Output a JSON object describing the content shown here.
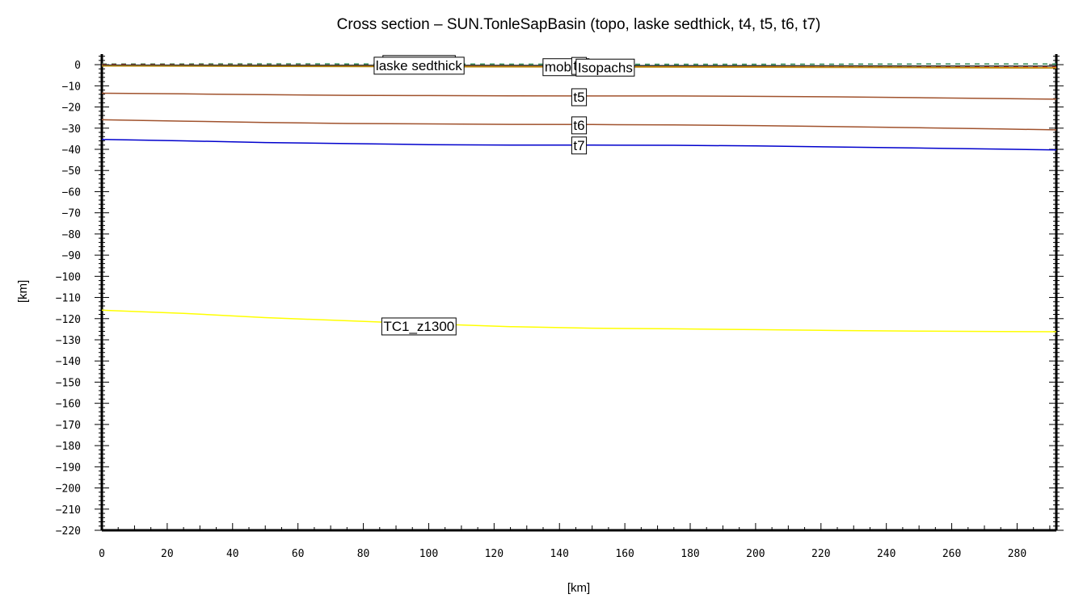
{
  "chart_data": {
    "type": "line",
    "title": "Cross section – SUN.TonleSapBasin (topo, laske sedthick, t4, t5, t6, t7)",
    "xlabel": "[km]",
    "ylabel": "[km]",
    "xlim": [
      0,
      292
    ],
    "ylim": [
      -220,
      5
    ],
    "xticks": [
      0,
      20,
      40,
      60,
      80,
      100,
      120,
      140,
      160,
      180,
      200,
      220,
      240,
      260,
      280
    ],
    "yticks": [
      0,
      -10,
      -20,
      -30,
      -40,
      -50,
      -60,
      -70,
      -80,
      -90,
      -100,
      -110,
      -120,
      -130,
      -140,
      -150,
      -160,
      -170,
      -180,
      -190,
      -200,
      -210,
      -220
    ],
    "grid": false,
    "series": [
      {
        "name": "topography",
        "color": "#2e8b57",
        "dashed": true,
        "label_at": 97,
        "label_y": 0.5,
        "x": [
          0,
          50,
          100,
          150,
          200,
          250,
          292
        ],
        "y": [
          0.3,
          0.4,
          0.3,
          0.2,
          0.2,
          0.3,
          0.3
        ]
      },
      {
        "name": "laske sedthick",
        "color": "#ff0000",
        "dashed": true,
        "label_at": 97,
        "label_y": -0.3,
        "x": [
          0,
          50,
          100,
          150,
          200,
          250,
          292
        ],
        "y": [
          0.0,
          -0.2,
          -0.3,
          -0.5,
          -0.6,
          -0.8,
          -0.9
        ]
      },
      {
        "name": "mobilis",
        "color": "#ff8c00",
        "dashed": false,
        "label_at": 142,
        "label_y": -1.0,
        "x": [
          0,
          50,
          100,
          150,
          200,
          250,
          292
        ],
        "y": [
          -0.3,
          -0.5,
          -0.6,
          -0.8,
          -1.0,
          -1.3,
          -1.5
        ]
      },
      {
        "name": "t4",
        "color": "#333333",
        "dashed": false,
        "label_at": 146,
        "label_y": -0.4,
        "x": [
          0,
          50,
          100,
          150,
          200,
          250,
          292
        ],
        "y": [
          -0.2,
          -0.3,
          -0.3,
          -0.4,
          -0.5,
          -0.6,
          -0.7
        ]
      },
      {
        "name": "Isopachs",
        "color": "#b8860b",
        "dashed": false,
        "label_at": 154,
        "label_y": -1.2,
        "x": [
          0,
          50,
          100,
          150,
          200,
          250,
          292
        ],
        "y": [
          -0.6,
          -0.8,
          -1.0,
          -1.1,
          -1.2,
          -1.4,
          -1.6
        ]
      },
      {
        "name": "t5",
        "color": "#a0522d",
        "dashed": false,
        "label_at": 146,
        "label_y": -15.2,
        "x": [
          0,
          25,
          50,
          75,
          100,
          125,
          150,
          175,
          200,
          225,
          250,
          275,
          292
        ],
        "y": [
          -13.5,
          -13.8,
          -14.2,
          -14.5,
          -14.6,
          -14.7,
          -14.8,
          -14.8,
          -15.0,
          -15.2,
          -15.6,
          -16.0,
          -16.3
        ]
      },
      {
        "name": "t6",
        "color": "#a0522d",
        "dashed": false,
        "label_at": 146,
        "label_y": -28.5,
        "x": [
          0,
          25,
          50,
          75,
          100,
          125,
          150,
          175,
          200,
          225,
          250,
          275,
          292
        ],
        "y": [
          -26.0,
          -26.7,
          -27.3,
          -27.8,
          -28.0,
          -28.2,
          -28.3,
          -28.5,
          -28.8,
          -29.3,
          -29.8,
          -30.4,
          -30.8
        ]
      },
      {
        "name": "t7",
        "color": "#0000cd",
        "dashed": false,
        "label_at": 146,
        "label_y": -38.0,
        "x": [
          0,
          25,
          50,
          75,
          100,
          125,
          150,
          175,
          200,
          225,
          250,
          275,
          292
        ],
        "y": [
          -35.3,
          -36.0,
          -36.8,
          -37.3,
          -37.8,
          -38.0,
          -38.0,
          -38.1,
          -38.4,
          -38.9,
          -39.4,
          -39.9,
          -40.3
        ]
      },
      {
        "name": "TC1_z1300",
        "color": "#ffff00",
        "dashed": false,
        "label_at": 97,
        "label_y": -123.5,
        "x": [
          0,
          25,
          50,
          75,
          100,
          125,
          150,
          175,
          200,
          225,
          250,
          275,
          292
        ],
        "y": [
          -116.0,
          -117.5,
          -119.5,
          -121.0,
          -122.5,
          -123.8,
          -124.5,
          -124.8,
          -125.2,
          -125.6,
          -125.9,
          -126.1,
          -126.2
        ]
      }
    ]
  }
}
